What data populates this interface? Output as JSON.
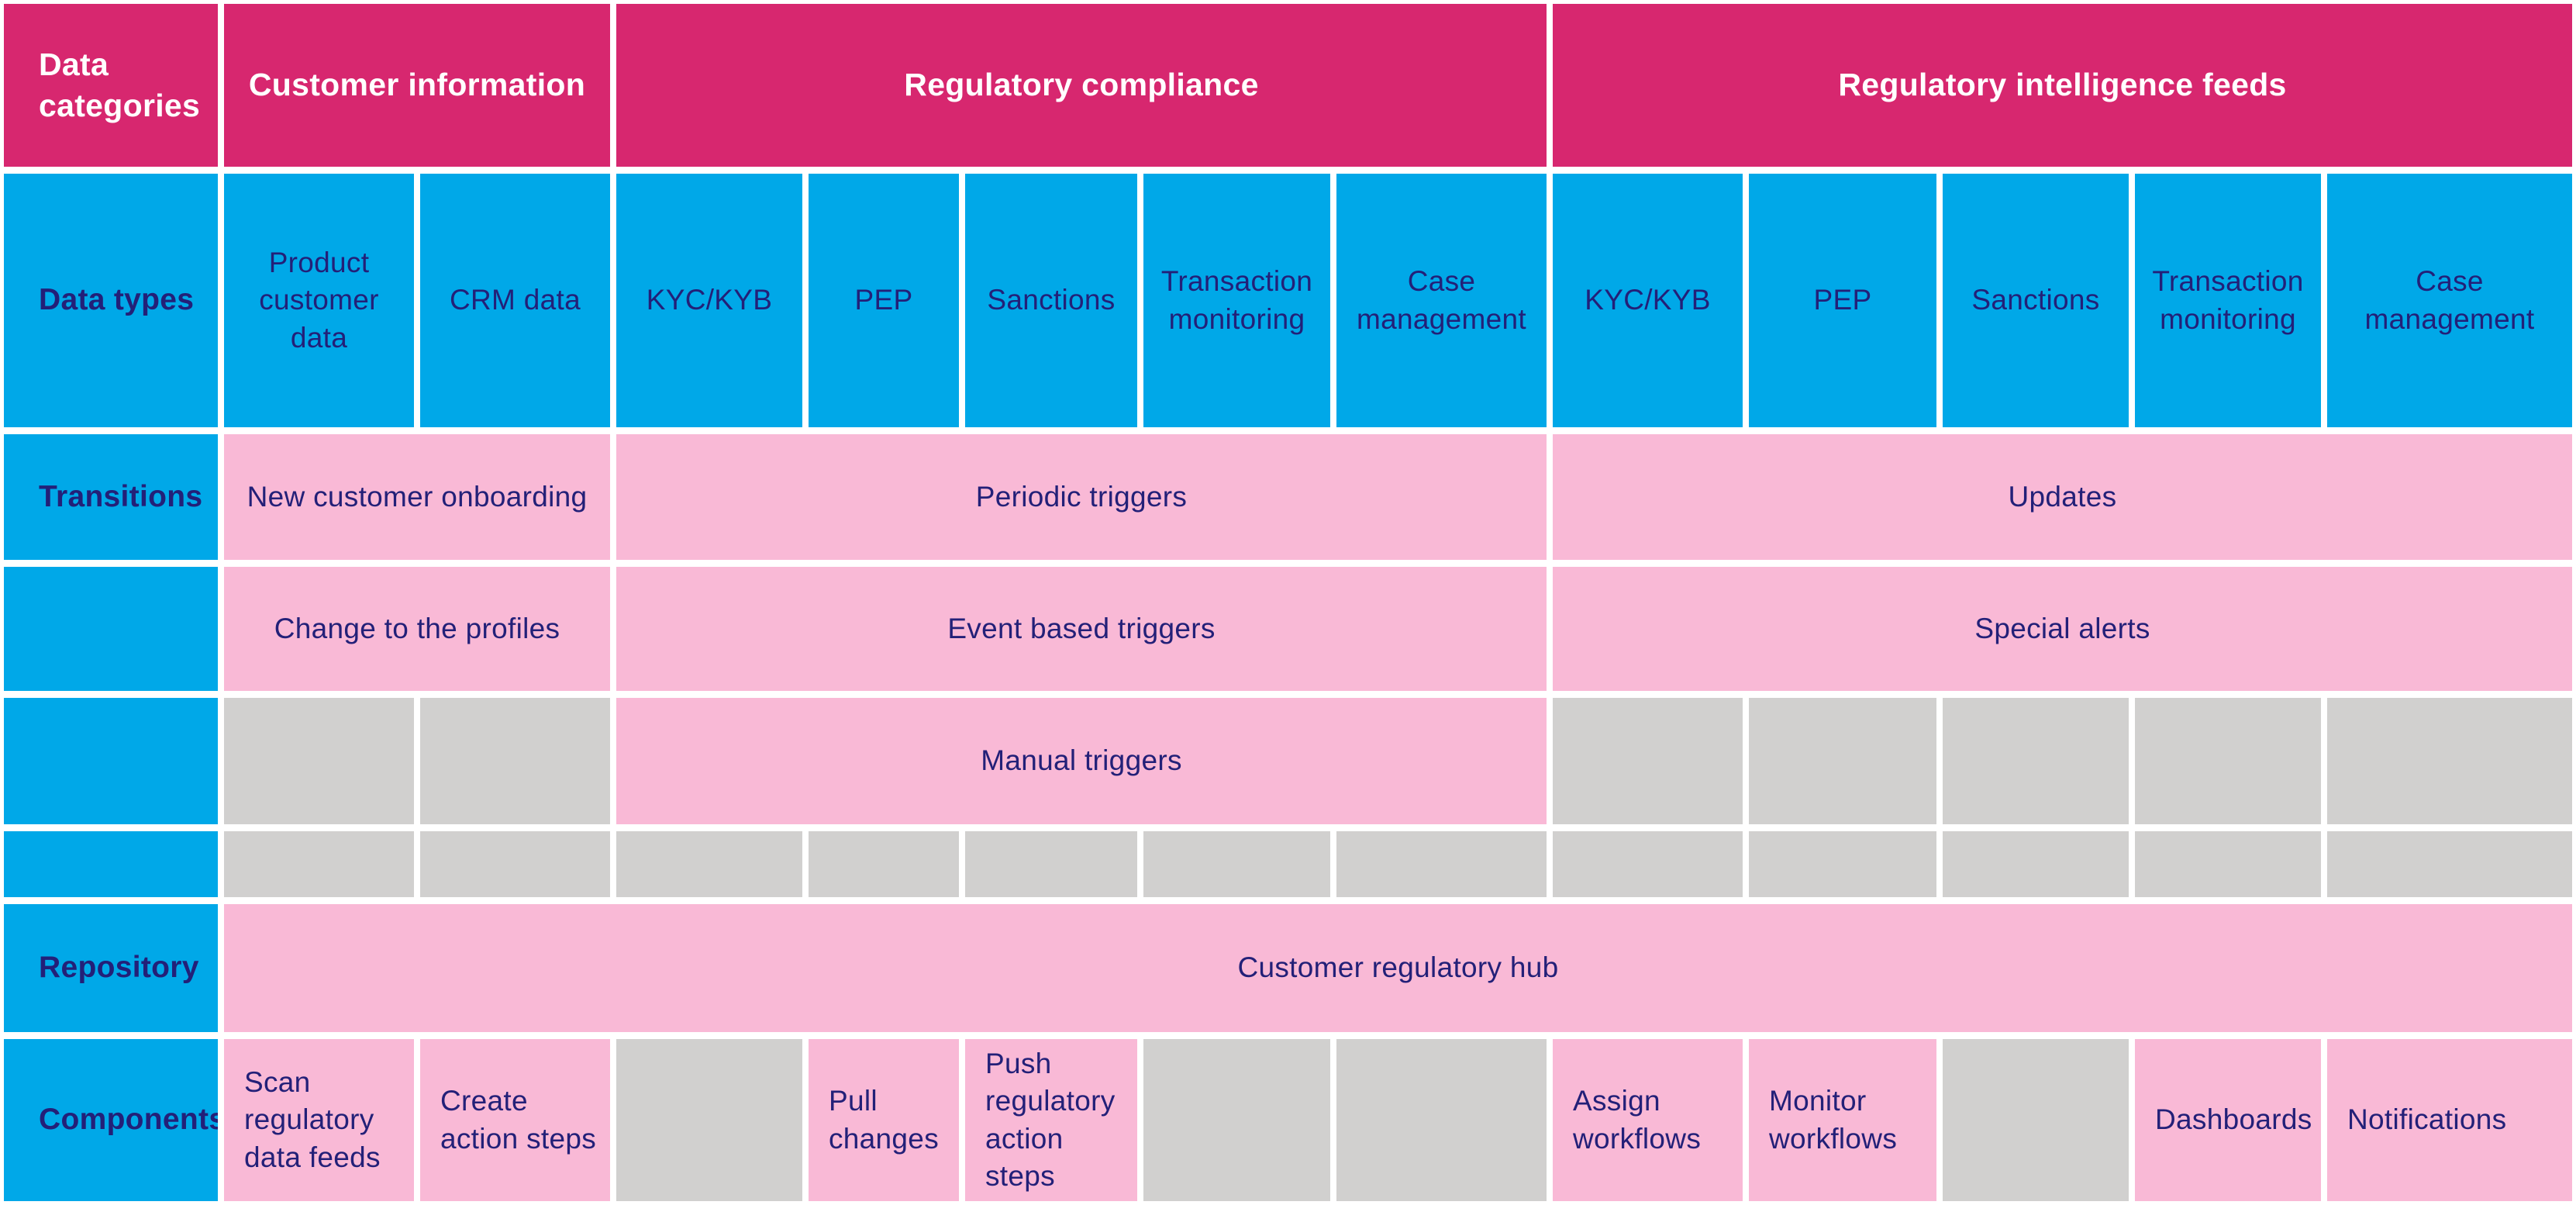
{
  "colors": {
    "magenta": "#D7276F",
    "blue": "#00A8E8",
    "pink": "#F9B9D6",
    "gray": "#D1D0CF",
    "navy": "#232078"
  },
  "header": {
    "data_categories": "Data categories",
    "customer_information": "Customer information",
    "regulatory_compliance": "Regulatory compliance",
    "regulatory_intelligence_feeds": "Regulatory intelligence feeds"
  },
  "data_types": {
    "label": "Data types",
    "cols": [
      "Product customer data",
      "CRM data",
      "KYC/KYB",
      "PEP",
      "Sanctions",
      "Transaction monitoring",
      "Case management",
      "KYC/KYB",
      "PEP",
      "Sanctions",
      "Transaction monitoring",
      "Case management"
    ]
  },
  "transitions": {
    "label": "Transitions",
    "new_customer_onboarding": "New customer onboarding",
    "periodic_triggers": "Periodic triggers",
    "updates": "Updates",
    "change_to_the_profiles": "Change to the profiles",
    "event_based_triggers": "Event based triggers",
    "special_alerts": "Special alerts",
    "manual_triggers": "Manual triggers"
  },
  "repository": {
    "label": "Repository",
    "customer_regulatory_hub": "Customer regulatory hub"
  },
  "components": {
    "label": "Components",
    "scan_regulatory_data_feeds": "Scan regulatory data feeds",
    "create_action_steps": "Create action steps",
    "pull_changes": "Pull changes",
    "push_regulatory_action_steps": "Push regulatory action steps",
    "assign_workflows": "Assign workflows",
    "monitor_workflows": "Monitor workflows",
    "dashboards": "Dashboards",
    "notifications": "Notifications"
  }
}
